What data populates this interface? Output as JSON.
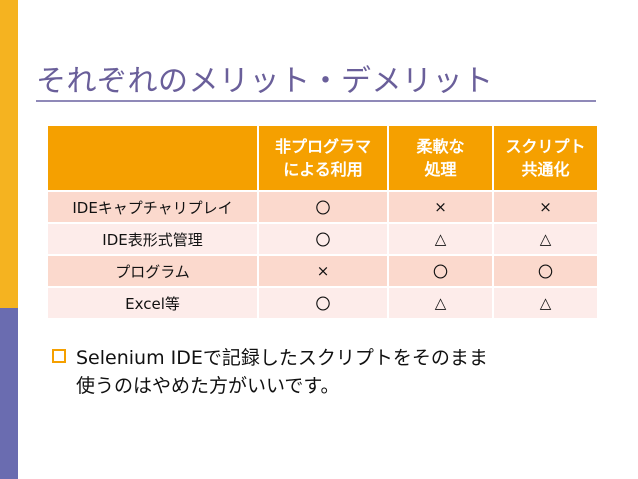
{
  "slide": {
    "title": "それぞれのメリット・デメリット",
    "accent_color": "#f5b320",
    "secondary_color": "#6a6cb0"
  },
  "table": {
    "header": [
      {
        "line1": "",
        "line2": ""
      },
      {
        "line1": "非プログラマ",
        "line2": "による利用"
      },
      {
        "line1": "柔軟な",
        "line2": "処理"
      },
      {
        "line1": "スクリプト",
        "line2": "共通化"
      }
    ],
    "rows": [
      {
        "label": "IDEキャプチャリプレイ",
        "cells": [
          "〇",
          "×",
          "×"
        ]
      },
      {
        "label": "IDE表形式管理",
        "cells": [
          "〇",
          "△",
          "△"
        ]
      },
      {
        "label": "プログラム",
        "cells": [
          "×",
          "〇",
          "〇"
        ]
      },
      {
        "label": "Excel等",
        "cells": [
          "〇",
          "△",
          "△"
        ]
      }
    ]
  },
  "bullet": {
    "line1": "Selenium IDEで記録したスクリプトをそのまま",
    "line2": "使うのはやめた方がいいです。"
  }
}
